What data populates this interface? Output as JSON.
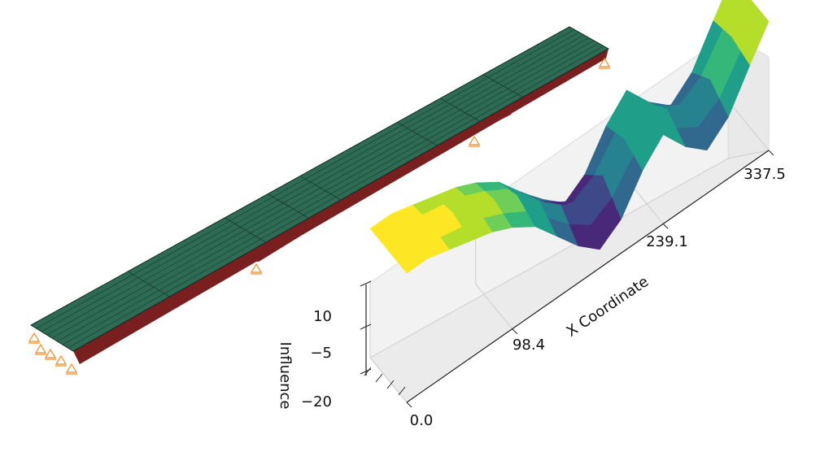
{
  "chart_data": {
    "type": "surface3d",
    "title": "",
    "xlabel": "X Coordinate",
    "zlabel": "Influence",
    "x_ticks": [
      0.0,
      98.4,
      239.1,
      337.5
    ],
    "x_tick_labels": [
      "0.0",
      "98.4",
      "239.1",
      "337.5"
    ],
    "z_ticks": [
      10,
      -5,
      -20
    ],
    "z_tick_labels": [
      "10",
      "−5",
      "−20"
    ],
    "xlim": [
      0,
      337.5
    ],
    "zlim": [
      -28,
      20
    ],
    "grid": true,
    "colormap": "viridis",
    "surface_profile": {
      "x": [
        0,
        20,
        40,
        60,
        80,
        98.4,
        120,
        140,
        160,
        180,
        200,
        220,
        239.1,
        260,
        280,
        300,
        320,
        337.5
      ],
      "edge_influence": [
        14,
        14,
        12,
        10,
        8,
        5,
        0,
        -8,
        -16,
        -22,
        -17,
        -6,
        1,
        -8,
        -14,
        -8,
        4,
        14
      ],
      "center_influence": [
        14,
        14,
        13,
        12,
        10,
        7,
        3,
        -3,
        -9,
        -13,
        -10,
        -3,
        2,
        -3,
        -6,
        -3,
        6,
        14
      ]
    }
  },
  "bridge_model": {
    "deck_color": "#2e6b55",
    "girder_color": "#7a1f1f",
    "support_color": "#f08a1c",
    "support_count": 8
  }
}
